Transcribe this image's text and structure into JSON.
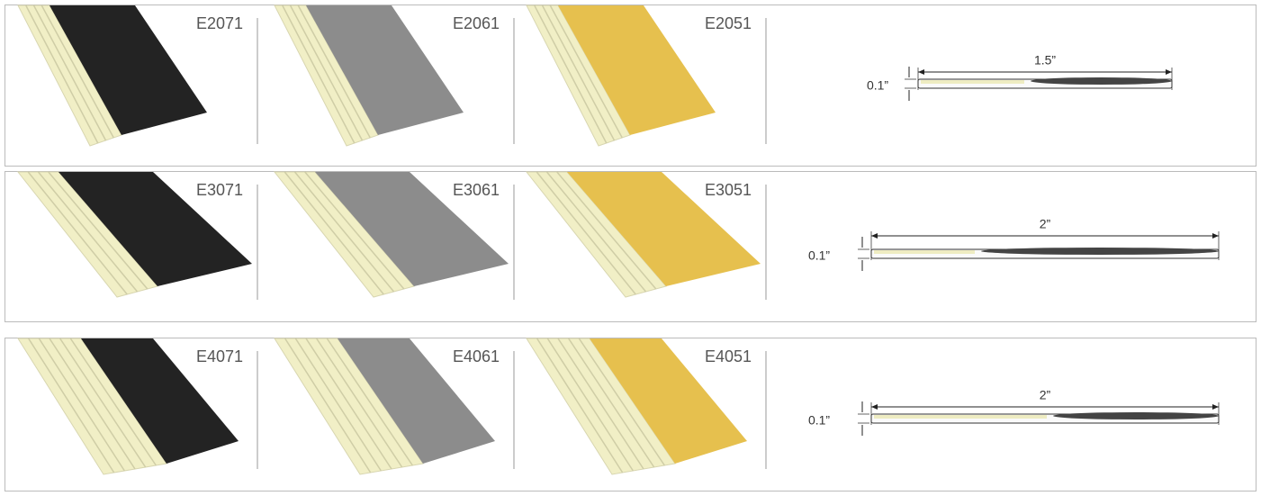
{
  "rows": [
    {
      "products": [
        {
          "code": "E2071"
        },
        {
          "code": "E2061"
        },
        {
          "code": "E2051"
        }
      ],
      "width": "1.5”",
      "thickness": "0.1”"
    },
    {
      "products": [
        {
          "code": "E3071"
        },
        {
          "code": "E3061"
        },
        {
          "code": "E3051"
        }
      ],
      "width": "2”",
      "thickness": "0.1”"
    },
    {
      "products": [
        {
          "code": "E4071"
        },
        {
          "code": "E4061"
        },
        {
          "code": "E4051"
        }
      ],
      "width": "2”",
      "thickness": "0.1”"
    }
  ]
}
